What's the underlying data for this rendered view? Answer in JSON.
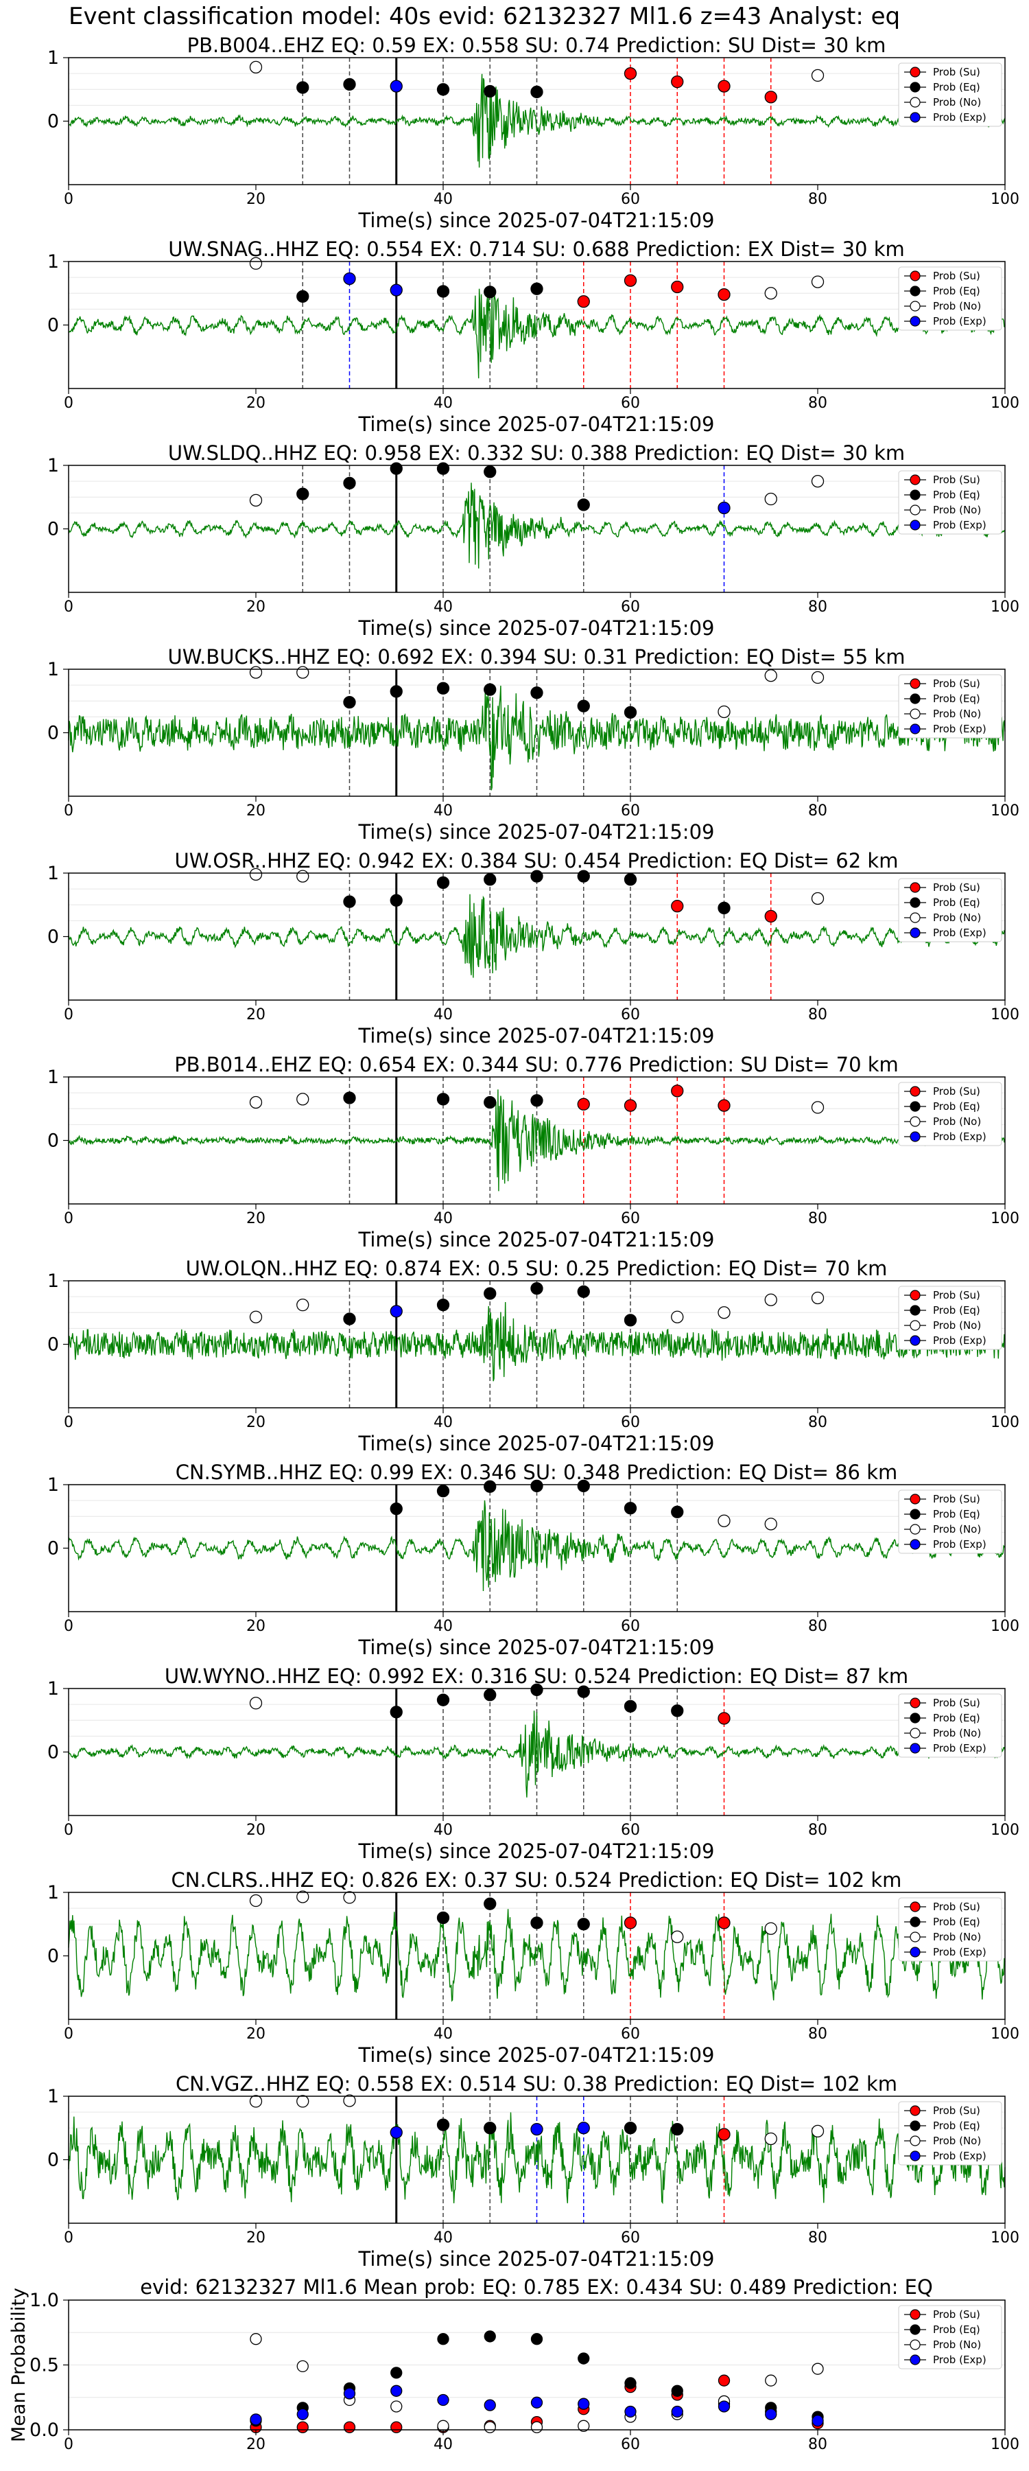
{
  "figure_title": "Event classification model: 40s evid: 62132327 Ml1.6 z=43 Analyst: eq",
  "xlabel": "Time(s) since 2025-07-04T21:15:09",
  "legend_labels": [
    "Prob (Su)",
    "Prob (Eq)",
    "Prob (No)",
    "Prob (Exp)"
  ],
  "colors": {
    "su": "#ff0000",
    "eq": "#000000",
    "no": "#ffffff",
    "exp": "#0000ff",
    "trace": "#008000"
  },
  "chart_data": [
    {
      "type": "scatter",
      "title": "PB.B004..EHZ   EQ: 0.59  EX: 0.558  SU: 0.74   Prediction: SU    Dist= 30 km",
      "xlim": [
        0,
        100
      ],
      "ylim": [
        -1,
        1
      ],
      "yticks": [
        1,
        0
      ],
      "xticks": [
        0,
        20,
        40,
        60,
        80,
        100
      ],
      "onset": 35,
      "trace": {
        "amp": 0.05,
        "noise": 0.04,
        "burst_start": 43,
        "burst_end": 58,
        "burst_amp": 1.0,
        "seed": 11
      },
      "points": [
        {
          "x": 20,
          "y": 0.85,
          "c": "no"
        },
        {
          "x": 25,
          "y": 0.53,
          "c": "eq"
        },
        {
          "x": 30,
          "y": 0.58,
          "c": "eq"
        },
        {
          "x": 35,
          "y": 0.55,
          "c": "exp"
        },
        {
          "x": 40,
          "y": 0.5,
          "c": "eq"
        },
        {
          "x": 45,
          "y": 0.47,
          "c": "eq"
        },
        {
          "x": 50,
          "y": 0.46,
          "c": "eq"
        },
        {
          "x": 60,
          "y": 0.75,
          "c": "su"
        },
        {
          "x": 65,
          "y": 0.62,
          "c": "su"
        },
        {
          "x": 70,
          "y": 0.55,
          "c": "su"
        },
        {
          "x": 75,
          "y": 0.38,
          "c": "su"
        },
        {
          "x": 80,
          "y": 0.72,
          "c": "no"
        }
      ]
    },
    {
      "type": "scatter",
      "title": "UW.SNAG..HHZ   EQ: 0.554  EX: 0.714  SU: 0.688   Prediction: EX    Dist= 30 km",
      "xlim": [
        0,
        100
      ],
      "ylim": [
        -1,
        1
      ],
      "yticks": [
        1,
        0
      ],
      "xticks": [
        0,
        20,
        40,
        60,
        80,
        100
      ],
      "onset": 35,
      "trace": {
        "amp": 0.12,
        "noise": 0.05,
        "burst_start": 43,
        "burst_end": 56,
        "burst_amp": 1.0,
        "seed": 23
      },
      "points": [
        {
          "x": 20,
          "y": 0.97,
          "c": "no"
        },
        {
          "x": 25,
          "y": 0.45,
          "c": "eq"
        },
        {
          "x": 30,
          "y": 0.73,
          "c": "exp"
        },
        {
          "x": 35,
          "y": 0.55,
          "c": "exp"
        },
        {
          "x": 40,
          "y": 0.53,
          "c": "eq"
        },
        {
          "x": 45,
          "y": 0.52,
          "c": "eq"
        },
        {
          "x": 50,
          "y": 0.57,
          "c": "eq"
        },
        {
          "x": 55,
          "y": 0.37,
          "c": "su"
        },
        {
          "x": 60,
          "y": 0.7,
          "c": "su"
        },
        {
          "x": 65,
          "y": 0.6,
          "c": "su"
        },
        {
          "x": 70,
          "y": 0.48,
          "c": "su"
        },
        {
          "x": 75,
          "y": 0.5,
          "c": "no"
        },
        {
          "x": 80,
          "y": 0.68,
          "c": "no"
        }
      ]
    },
    {
      "type": "scatter",
      "title": "UW.SLDQ..HHZ   EQ: 0.958  EX: 0.332  SU: 0.388   Prediction: EQ    Dist= 30 km",
      "xlim": [
        0,
        100
      ],
      "ylim": [
        -1,
        1
      ],
      "yticks": [
        1,
        0
      ],
      "xticks": [
        0,
        20,
        40,
        60,
        80,
        100
      ],
      "onset": 35,
      "trace": {
        "amp": 0.1,
        "noise": 0.04,
        "burst_start": 42,
        "burst_end": 55,
        "burst_amp": 1.0,
        "seed": 37
      },
      "points": [
        {
          "x": 20,
          "y": 0.45,
          "c": "no"
        },
        {
          "x": 25,
          "y": 0.55,
          "c": "eq"
        },
        {
          "x": 30,
          "y": 0.72,
          "c": "eq"
        },
        {
          "x": 35,
          "y": 0.95,
          "c": "eq"
        },
        {
          "x": 40,
          "y": 0.95,
          "c": "eq"
        },
        {
          "x": 45,
          "y": 0.9,
          "c": "eq"
        },
        {
          "x": 55,
          "y": 0.38,
          "c": "eq"
        },
        {
          "x": 70,
          "y": 0.33,
          "c": "exp"
        },
        {
          "x": 75,
          "y": 0.47,
          "c": "no"
        },
        {
          "x": 80,
          "y": 0.75,
          "c": "no"
        }
      ]
    },
    {
      "type": "scatter",
      "title": "UW.BUCKS..HHZ   EQ: 0.692  EX: 0.394  SU: 0.31   Prediction: EQ    Dist= 55 km",
      "xlim": [
        0,
        100
      ],
      "ylim": [
        -1,
        1
      ],
      "yticks": [
        1,
        0
      ],
      "xticks": [
        0,
        20,
        40,
        60,
        80,
        100
      ],
      "onset": 35,
      "trace": {
        "amp": 0.1,
        "noise": 0.22,
        "burst_start": 44,
        "burst_end": 58,
        "burst_amp": 1.0,
        "seed": 41
      },
      "points": [
        {
          "x": 20,
          "y": 0.95,
          "c": "no"
        },
        {
          "x": 25,
          "y": 0.95,
          "c": "no"
        },
        {
          "x": 30,
          "y": 0.48,
          "c": "eq"
        },
        {
          "x": 35,
          "y": 0.65,
          "c": "eq"
        },
        {
          "x": 40,
          "y": 0.7,
          "c": "eq"
        },
        {
          "x": 45,
          "y": 0.68,
          "c": "eq"
        },
        {
          "x": 50,
          "y": 0.63,
          "c": "eq"
        },
        {
          "x": 55,
          "y": 0.42,
          "c": "eq"
        },
        {
          "x": 60,
          "y": 0.32,
          "c": "eq"
        },
        {
          "x": 70,
          "y": 0.33,
          "c": "no"
        },
        {
          "x": 75,
          "y": 0.9,
          "c": "no"
        },
        {
          "x": 80,
          "y": 0.87,
          "c": "no"
        }
      ]
    },
    {
      "type": "scatter",
      "title": "UW.OSR..HHZ   EQ: 0.942  EX: 0.384  SU: 0.454   Prediction: EQ    Dist= 62 km",
      "xlim": [
        0,
        100
      ],
      "ylim": [
        -1,
        1
      ],
      "yticks": [
        1,
        0
      ],
      "xticks": [
        0,
        20,
        40,
        60,
        80,
        100
      ],
      "onset": 35,
      "trace": {
        "amp": 0.12,
        "noise": 0.05,
        "burst_start": 42,
        "burst_end": 58,
        "burst_amp": 1.0,
        "seed": 53
      },
      "points": [
        {
          "x": 20,
          "y": 0.98,
          "c": "no"
        },
        {
          "x": 25,
          "y": 0.95,
          "c": "no"
        },
        {
          "x": 30,
          "y": 0.55,
          "c": "eq"
        },
        {
          "x": 35,
          "y": 0.57,
          "c": "eq"
        },
        {
          "x": 40,
          "y": 0.85,
          "c": "eq"
        },
        {
          "x": 45,
          "y": 0.9,
          "c": "eq"
        },
        {
          "x": 50,
          "y": 0.95,
          "c": "eq"
        },
        {
          "x": 55,
          "y": 0.95,
          "c": "eq"
        },
        {
          "x": 60,
          "y": 0.9,
          "c": "eq"
        },
        {
          "x": 65,
          "y": 0.48,
          "c": "su"
        },
        {
          "x": 70,
          "y": 0.45,
          "c": "eq"
        },
        {
          "x": 75,
          "y": 0.32,
          "c": "su"
        },
        {
          "x": 80,
          "y": 0.6,
          "c": "no"
        }
      ]
    },
    {
      "type": "scatter",
      "title": "PB.B014..EHZ   EQ: 0.654  EX: 0.344  SU: 0.776   Prediction: SU    Dist= 70 km",
      "xlim": [
        0,
        100
      ],
      "ylim": [
        -1,
        1
      ],
      "yticks": [
        1,
        0
      ],
      "xticks": [
        0,
        20,
        40,
        60,
        80,
        100
      ],
      "onset": 35,
      "trace": {
        "amp": 0.03,
        "noise": 0.04,
        "burst_start": 45,
        "burst_end": 62,
        "burst_amp": 1.0,
        "seed": 67
      },
      "points": [
        {
          "x": 20,
          "y": 0.6,
          "c": "no"
        },
        {
          "x": 25,
          "y": 0.65,
          "c": "no"
        },
        {
          "x": 30,
          "y": 0.67,
          "c": "eq"
        },
        {
          "x": 40,
          "y": 0.65,
          "c": "eq"
        },
        {
          "x": 45,
          "y": 0.6,
          "c": "eq"
        },
        {
          "x": 50,
          "y": 0.63,
          "c": "eq"
        },
        {
          "x": 55,
          "y": 0.57,
          "c": "su"
        },
        {
          "x": 60,
          "y": 0.55,
          "c": "su"
        },
        {
          "x": 65,
          "y": 0.78,
          "c": "su"
        },
        {
          "x": 70,
          "y": 0.55,
          "c": "su"
        },
        {
          "x": 80,
          "y": 0.52,
          "c": "no"
        }
      ]
    },
    {
      "type": "scatter",
      "title": "UW.OLQN..HHZ   EQ: 0.874  EX: 0.5  SU: 0.25   Prediction: EQ    Dist= 70 km",
      "xlim": [
        0,
        100
      ],
      "ylim": [
        -1,
        1
      ],
      "yticks": [
        1,
        0
      ],
      "xticks": [
        0,
        20,
        40,
        60,
        80,
        100
      ],
      "onset": 35,
      "trace": {
        "amp": 0.06,
        "noise": 0.2,
        "burst_start": 44,
        "burst_end": 58,
        "burst_amp": 0.8,
        "seed": 71
      },
      "points": [
        {
          "x": 20,
          "y": 0.43,
          "c": "no"
        },
        {
          "x": 25,
          "y": 0.62,
          "c": "no"
        },
        {
          "x": 30,
          "y": 0.4,
          "c": "eq"
        },
        {
          "x": 35,
          "y": 0.52,
          "c": "exp"
        },
        {
          "x": 40,
          "y": 0.62,
          "c": "eq"
        },
        {
          "x": 45,
          "y": 0.8,
          "c": "eq"
        },
        {
          "x": 50,
          "y": 0.88,
          "c": "eq"
        },
        {
          "x": 55,
          "y": 0.83,
          "c": "eq"
        },
        {
          "x": 60,
          "y": 0.38,
          "c": "eq"
        },
        {
          "x": 65,
          "y": 0.43,
          "c": "no"
        },
        {
          "x": 70,
          "y": 0.5,
          "c": "no"
        },
        {
          "x": 75,
          "y": 0.7,
          "c": "no"
        },
        {
          "x": 80,
          "y": 0.73,
          "c": "no"
        }
      ]
    },
    {
      "type": "scatter",
      "title": "CN.SYMB..HHZ   EQ: 0.99  EX: 0.346  SU: 0.348   Prediction: EQ    Dist= 86 km",
      "xlim": [
        0,
        100
      ],
      "ylim": [
        -1,
        1
      ],
      "yticks": [
        1,
        0
      ],
      "xticks": [
        0,
        20,
        40,
        60,
        80,
        100
      ],
      "onset": 35,
      "trace": {
        "amp": 0.14,
        "noise": 0.05,
        "burst_start": 43,
        "burst_end": 65,
        "burst_amp": 0.9,
        "seed": 83
      },
      "points": [
        {
          "x": 35,
          "y": 0.62,
          "c": "eq"
        },
        {
          "x": 40,
          "y": 0.9,
          "c": "eq"
        },
        {
          "x": 45,
          "y": 0.97,
          "c": "eq"
        },
        {
          "x": 50,
          "y": 0.98,
          "c": "eq"
        },
        {
          "x": 55,
          "y": 0.98,
          "c": "eq"
        },
        {
          "x": 60,
          "y": 0.63,
          "c": "eq"
        },
        {
          "x": 65,
          "y": 0.57,
          "c": "eq"
        },
        {
          "x": 70,
          "y": 0.43,
          "c": "no"
        },
        {
          "x": 75,
          "y": 0.38,
          "c": "no"
        }
      ]
    },
    {
      "type": "scatter",
      "title": "UW.WYNO..HHZ   EQ: 0.992  EX: 0.316  SU: 0.524   Prediction: EQ    Dist= 87 km",
      "xlim": [
        0,
        100
      ],
      "ylim": [
        -1,
        1
      ],
      "yticks": [
        1,
        0
      ],
      "xticks": [
        0,
        20,
        40,
        60,
        80,
        100
      ],
      "onset": 35,
      "trace": {
        "amp": 0.07,
        "noise": 0.04,
        "burst_start": 48,
        "burst_end": 64,
        "burst_amp": 0.9,
        "seed": 97
      },
      "points": [
        {
          "x": 20,
          "y": 0.77,
          "c": "no"
        },
        {
          "x": 35,
          "y": 0.63,
          "c": "eq"
        },
        {
          "x": 40,
          "y": 0.82,
          "c": "eq"
        },
        {
          "x": 45,
          "y": 0.9,
          "c": "eq"
        },
        {
          "x": 50,
          "y": 0.98,
          "c": "eq"
        },
        {
          "x": 55,
          "y": 0.95,
          "c": "eq"
        },
        {
          "x": 60,
          "y": 0.72,
          "c": "eq"
        },
        {
          "x": 65,
          "y": 0.65,
          "c": "eq"
        },
        {
          "x": 70,
          "y": 0.53,
          "c": "su"
        }
      ]
    },
    {
      "type": "scatter",
      "title": "CN.CLRS..HHZ   EQ: 0.826  EX: 0.37  SU: 0.524   Prediction: EQ    Dist= 102 km",
      "xlim": [
        0,
        100
      ],
      "ylim": [
        -1,
        1
      ],
      "yticks": [
        1,
        0
      ],
      "xticks": [
        0,
        20,
        40,
        60,
        80,
        100
      ],
      "onset": 35,
      "trace": {
        "amp": 0.55,
        "noise": 0.18,
        "burst_start": 42,
        "burst_end": 62,
        "burst_amp": 0.3,
        "seed": 101
      },
      "points": [
        {
          "x": 20,
          "y": 0.87,
          "c": "no"
        },
        {
          "x": 25,
          "y": 0.93,
          "c": "no"
        },
        {
          "x": 30,
          "y": 0.92,
          "c": "no"
        },
        {
          "x": 40,
          "y": 0.6,
          "c": "eq"
        },
        {
          "x": 45,
          "y": 0.82,
          "c": "eq"
        },
        {
          "x": 50,
          "y": 0.52,
          "c": "eq"
        },
        {
          "x": 55,
          "y": 0.5,
          "c": "eq"
        },
        {
          "x": 60,
          "y": 0.52,
          "c": "su"
        },
        {
          "x": 65,
          "y": 0.3,
          "c": "no"
        },
        {
          "x": 70,
          "y": 0.52,
          "c": "su"
        },
        {
          "x": 75,
          "y": 0.43,
          "c": "no"
        }
      ]
    },
    {
      "type": "scatter",
      "title": "CN.VGZ..HHZ   EQ: 0.558  EX: 0.514  SU: 0.38   Prediction: EQ    Dist= 102 km",
      "xlim": [
        0,
        100
      ],
      "ylim": [
        -1,
        1
      ],
      "yticks": [
        1,
        0
      ],
      "xticks": [
        0,
        20,
        40,
        60,
        80,
        100
      ],
      "onset": 35,
      "trace": {
        "amp": 0.45,
        "noise": 0.25,
        "burst_start": 40,
        "burst_end": 70,
        "burst_amp": 0.3,
        "seed": 113
      },
      "points": [
        {
          "x": 20,
          "y": 0.92,
          "c": "no"
        },
        {
          "x": 25,
          "y": 0.92,
          "c": "no"
        },
        {
          "x": 30,
          "y": 0.93,
          "c": "no"
        },
        {
          "x": 35,
          "y": 0.43,
          "c": "exp"
        },
        {
          "x": 40,
          "y": 0.55,
          "c": "eq"
        },
        {
          "x": 45,
          "y": 0.5,
          "c": "eq"
        },
        {
          "x": 50,
          "y": 0.48,
          "c": "exp"
        },
        {
          "x": 55,
          "y": 0.5,
          "c": "exp"
        },
        {
          "x": 60,
          "y": 0.5,
          "c": "eq"
        },
        {
          "x": 65,
          "y": 0.48,
          "c": "eq"
        },
        {
          "x": 70,
          "y": 0.4,
          "c": "su"
        },
        {
          "x": 75,
          "y": 0.33,
          "c": "no"
        },
        {
          "x": 80,
          "y": 0.45,
          "c": "no"
        }
      ]
    },
    {
      "type": "scatter",
      "title": "evid: 62132327  Ml1.6   Mean prob:    EQ: 0.785  EX: 0.434  SU: 0.489   Prediction: EQ",
      "xlim": [
        0,
        100
      ],
      "ylim": [
        0,
        1
      ],
      "yticks": [
        1.0,
        0.5,
        0.0
      ],
      "xticks": [
        0,
        20,
        40,
        60,
        80,
        100
      ],
      "ylabel": "Mean Probability",
      "series": [
        {
          "name": "Prob (Su)",
          "c": "su",
          "x": [
            20,
            25,
            30,
            35,
            40,
            45,
            50,
            55,
            60,
            65,
            70,
            75,
            80
          ],
          "y": [
            0.02,
            0.02,
            0.02,
            0.02,
            0.02,
            0.03,
            0.06,
            0.16,
            0.33,
            0.27,
            0.38,
            0.14,
            0.05
          ]
        },
        {
          "name": "Prob (Eq)",
          "c": "eq",
          "x": [
            20,
            25,
            30,
            35,
            40,
            45,
            50,
            55,
            60,
            65,
            70,
            75,
            80
          ],
          "y": [
            0.07,
            0.17,
            0.32,
            0.44,
            0.7,
            0.72,
            0.7,
            0.55,
            0.36,
            0.3,
            0.2,
            0.17,
            0.1
          ]
        },
        {
          "name": "Prob (No)",
          "c": "no",
          "x": [
            20,
            25,
            30,
            35,
            40,
            45,
            50,
            55,
            60,
            65,
            70,
            75,
            80
          ],
          "y": [
            0.7,
            0.49,
            0.23,
            0.18,
            0.03,
            0.02,
            0.02,
            0.03,
            0.1,
            0.12,
            0.22,
            0.38,
            0.47
          ]
        },
        {
          "name": "Prob (Exp)",
          "c": "exp",
          "x": [
            20,
            25,
            30,
            35,
            40,
            45,
            50,
            55,
            60,
            65,
            70,
            75,
            80
          ],
          "y": [
            0.08,
            0.12,
            0.28,
            0.3,
            0.23,
            0.19,
            0.21,
            0.2,
            0.14,
            0.14,
            0.18,
            0.12,
            0.07
          ]
        }
      ]
    }
  ]
}
